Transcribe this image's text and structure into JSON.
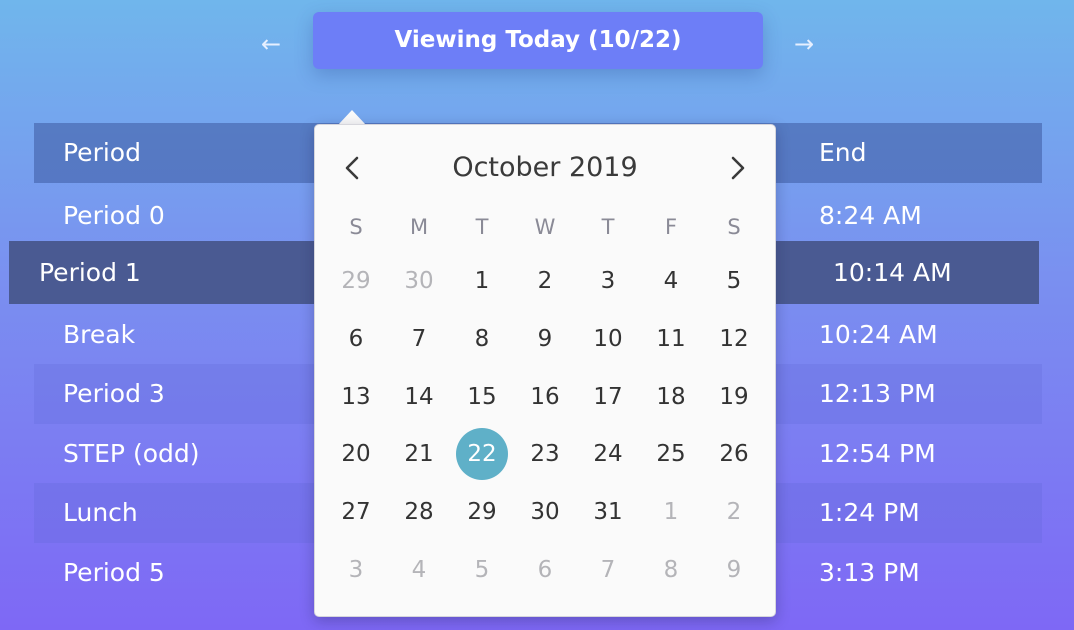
{
  "nav": {
    "prev_symbol": "←",
    "next_symbol": "→",
    "viewing_label": "Viewing Today (10/22)"
  },
  "schedule": {
    "header": {
      "name": "Period",
      "end": "End"
    },
    "rows": [
      {
        "name": "Period 0",
        "end": "8:24 AM"
      },
      {
        "name": "Period 1",
        "end": "10:14 AM",
        "current": true
      },
      {
        "name": "Break",
        "end": "10:24 AM"
      },
      {
        "name": "Period 3",
        "end": "12:13 PM"
      },
      {
        "name": "STEP (odd)",
        "end": "12:54 PM"
      },
      {
        "name": "Lunch",
        "end": "1:24 PM"
      },
      {
        "name": "Period 5",
        "end": "3:13 PM"
      }
    ]
  },
  "calendar": {
    "month_label": "October 2019",
    "weekdays": [
      "S",
      "M",
      "T",
      "W",
      "T",
      "F",
      "S"
    ],
    "weeks": [
      [
        {
          "d": "29",
          "m": true
        },
        {
          "d": "30",
          "m": true
        },
        {
          "d": "1"
        },
        {
          "d": "2"
        },
        {
          "d": "3"
        },
        {
          "d": "4"
        },
        {
          "d": "5"
        }
      ],
      [
        {
          "d": "6"
        },
        {
          "d": "7"
        },
        {
          "d": "8"
        },
        {
          "d": "9"
        },
        {
          "d": "10"
        },
        {
          "d": "11"
        },
        {
          "d": "12"
        }
      ],
      [
        {
          "d": "13"
        },
        {
          "d": "14"
        },
        {
          "d": "15"
        },
        {
          "d": "16"
        },
        {
          "d": "17"
        },
        {
          "d": "18"
        },
        {
          "d": "19"
        }
      ],
      [
        {
          "d": "20"
        },
        {
          "d": "21"
        },
        {
          "d": "22",
          "s": true
        },
        {
          "d": "23"
        },
        {
          "d": "24"
        },
        {
          "d": "25"
        },
        {
          "d": "26"
        }
      ],
      [
        {
          "d": "27"
        },
        {
          "d": "28"
        },
        {
          "d": "29"
        },
        {
          "d": "30"
        },
        {
          "d": "31"
        },
        {
          "d": "1",
          "m": true
        },
        {
          "d": "2",
          "m": true
        }
      ],
      [
        {
          "d": "3",
          "m": true
        },
        {
          "d": "4",
          "m": true
        },
        {
          "d": "5",
          "m": true
        },
        {
          "d": "6",
          "m": true
        },
        {
          "d": "7",
          "m": true
        },
        {
          "d": "8",
          "m": true
        },
        {
          "d": "9",
          "m": true
        }
      ]
    ],
    "selected_color": "#5fb0c8"
  },
  "icons": {
    "prev": "arrow-left-icon",
    "next": "arrow-right-icon",
    "cal_prev": "chevron-left-icon",
    "cal_next": "chevron-right-icon"
  }
}
